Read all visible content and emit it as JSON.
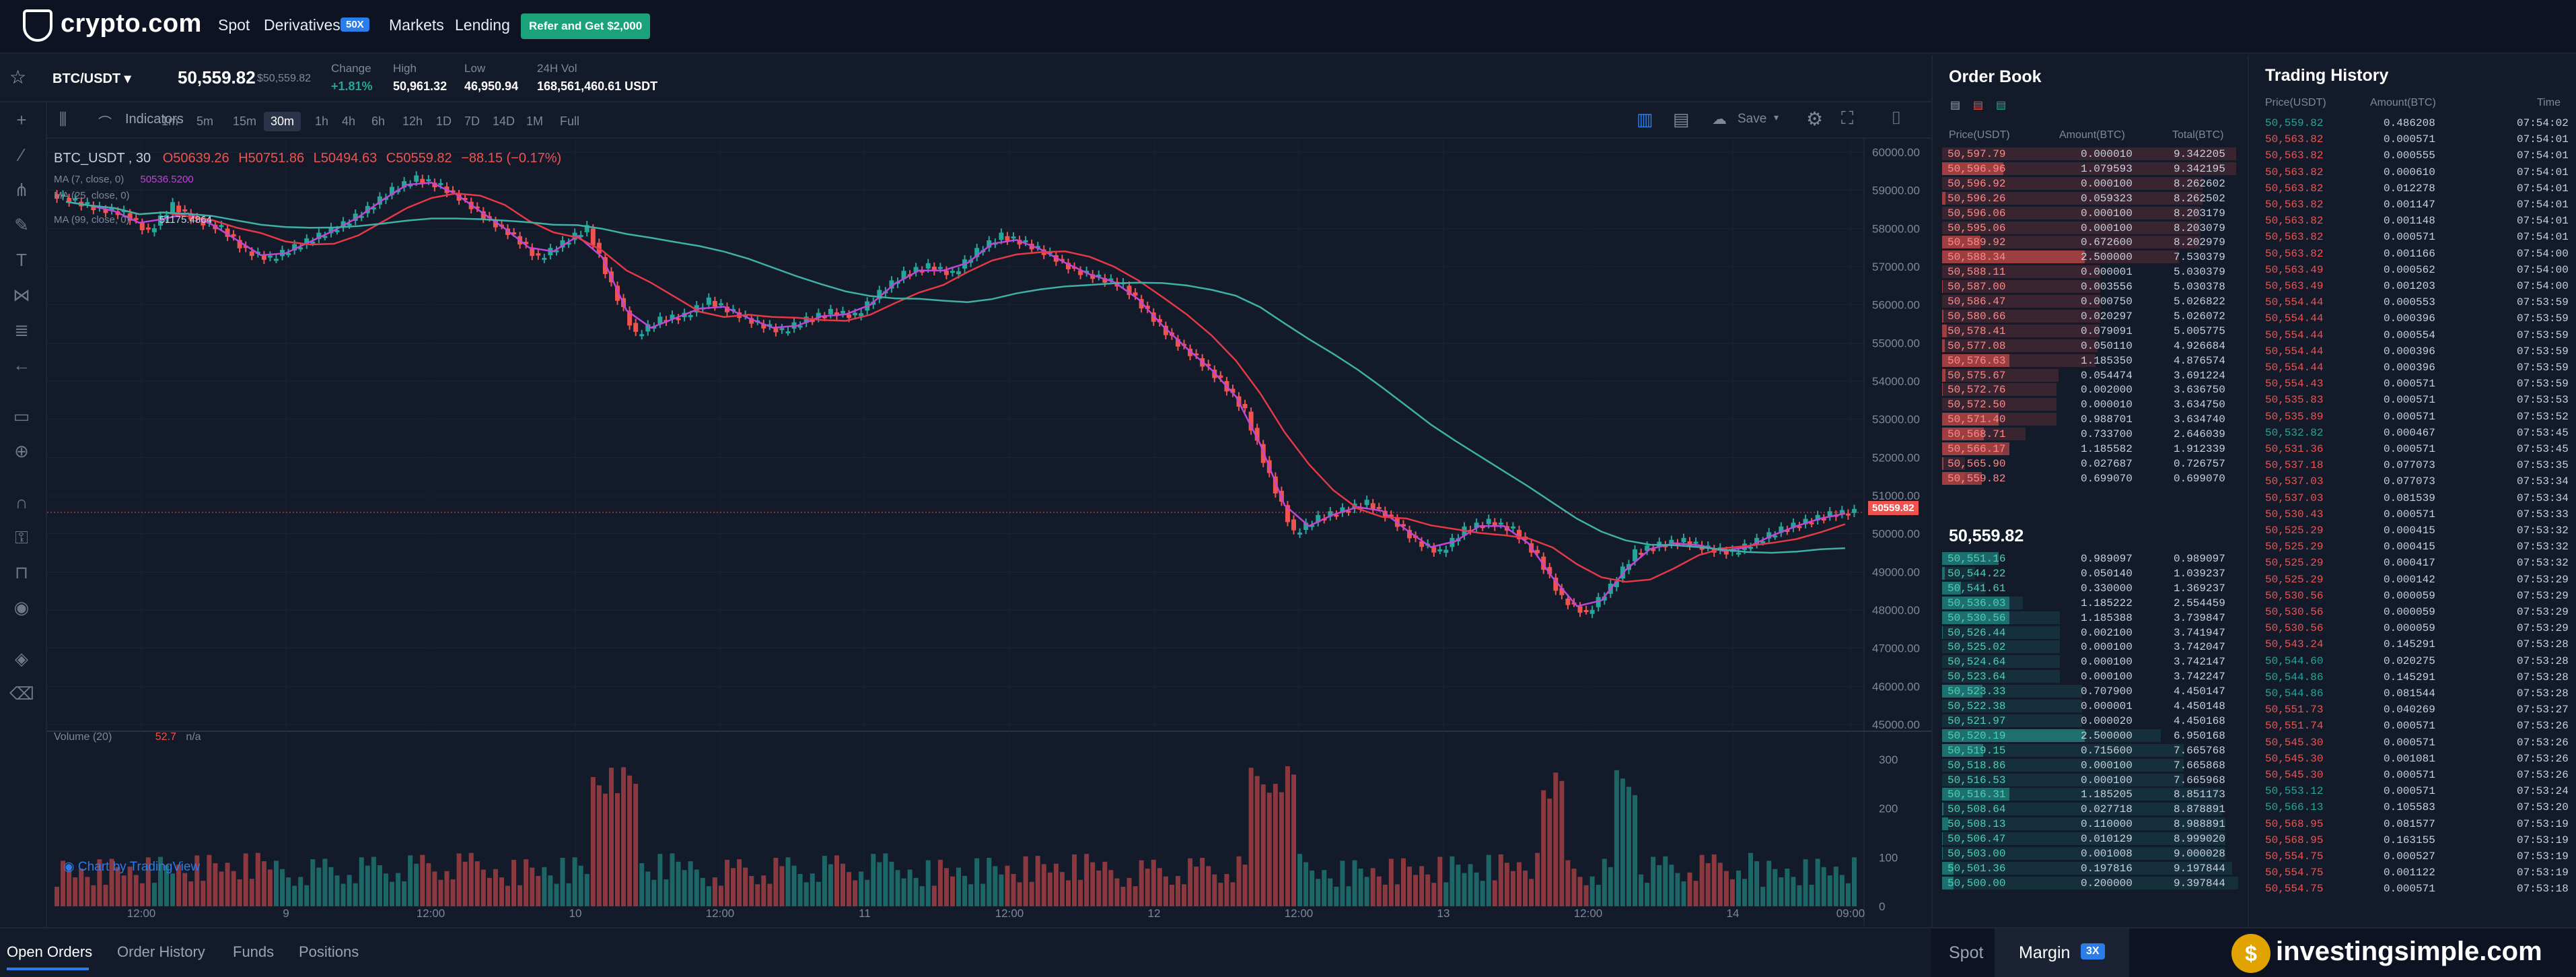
{
  "nav": {
    "logo": "crypto.com",
    "links": [
      "Spot",
      "Derivatives",
      "Markets",
      "Lending"
    ],
    "derivatives_badge": "50X",
    "refer_button": "Refer and Get $2,000"
  },
  "ticker": {
    "pair": "BTC/USDT",
    "price": "50,559.82",
    "price_usd": "$50,559.82",
    "stats": [
      {
        "label": "Change",
        "value": "+1.81%"
      },
      {
        "label": "High",
        "value": "50,961.32"
      },
      {
        "label": "Low",
        "value": "46,950.94"
      },
      {
        "label": "24H Vol",
        "value": "168,561,460.61 USDT"
      }
    ]
  },
  "toolbar": {
    "indicators_label": "Indicators",
    "timeframes": [
      "1m",
      "5m",
      "15m",
      "30m",
      "1h",
      "4h",
      "6h",
      "12h",
      "1D",
      "7D",
      "14D",
      "1M",
      "Full"
    ],
    "active_timeframe": "30m",
    "save_label": "Save"
  },
  "chart": {
    "symbol_label": "BTC_USDT , 30",
    "open": "O50639.26",
    "high": "H50751.86",
    "low": "L50494.63",
    "close": "C50559.82",
    "change": "−88.15 (−0.17%)",
    "ma7_label": "MA (7, close, 0)",
    "ma7_value": "50536.5200",
    "ma25_label": "MA (25, close, 0)",
    "ma25_value": "51175.4864",
    "ma99_label": "MA (99, close, 0)",
    "price_tag": "50559.82",
    "volume_label": "Volume (20)",
    "volume_value": "52.7",
    "volume_na": "n/a",
    "watermark": "Chart by TradingView",
    "price_ticks": [
      "60000.00",
      "59000.00",
      "58000.00",
      "57000.00",
      "56000.00",
      "55000.00",
      "54000.00",
      "53000.00",
      "52000.00",
      "51000.00",
      "50000.00",
      "49000.00",
      "48000.00",
      "47000.00",
      "46000.00",
      "45000.00"
    ],
    "volume_ticks": [
      "300",
      "200",
      "100",
      "0"
    ],
    "time_ticks": [
      "12:00",
      "9",
      "12:00",
      "10",
      "12:00",
      "11",
      "12:00",
      "12",
      "12:00",
      "13",
      "12:00",
      "14",
      "09:00"
    ]
  },
  "chart_data": {
    "type": "line",
    "title": "",
    "xlabel": "",
    "ylabel": "",
    "ylim": [
      45000,
      60000
    ],
    "series": [
      {
        "name": "",
        "values": [
          58700,
          58500,
          58400,
          57900,
          58600,
          58200,
          58000,
          57400,
          57200,
          57500,
          57800,
          58100,
          58500,
          59000,
          59300,
          59100,
          58700,
          58200,
          57800,
          57200,
          57600,
          58000,
          56500,
          55200,
          55600,
          55700,
          56100,
          55800,
          55500,
          55300,
          55600,
          55800,
          55700,
          56300,
          56800,
          57000,
          56800,
          57400,
          57800,
          57600,
          57300,
          56900,
          56700,
          56500,
          55800,
          55100,
          54600,
          54000,
          53200,
          51500,
          50000,
          50400,
          50600,
          50800,
          50400,
          49800,
          49500,
          50100,
          50300,
          50100,
          49400,
          48300,
          47900,
          48600,
          49500,
          49700,
          49800,
          49600,
          49500,
          49800,
          50100,
          50300,
          50500,
          50560
        ]
      }
    ]
  },
  "orderbook": {
    "title": "Order Book",
    "headers": [
      "Price(USDT)",
      "Amount(BTC)",
      "Total(BTC)"
    ],
    "asks": [
      [
        "50,597.79",
        "0.000010",
        "9.342205"
      ],
      [
        "50,596.96",
        "1.079593",
        "9.342195"
      ],
      [
        "50,596.92",
        "0.000100",
        "8.262602"
      ],
      [
        "50,596.26",
        "0.059323",
        "8.262502"
      ],
      [
        "50,596.06",
        "0.000100",
        "8.203179"
      ],
      [
        "50,595.06",
        "0.000100",
        "8.203079"
      ],
      [
        "50,589.92",
        "0.672600",
        "8.202979"
      ],
      [
        "50,588.34",
        "2.500000",
        "7.530379"
      ],
      [
        "50,588.11",
        "0.000001",
        "5.030379"
      ],
      [
        "50,587.00",
        "0.003556",
        "5.030378"
      ],
      [
        "50,586.47",
        "0.000750",
        "5.026822"
      ],
      [
        "50,580.66",
        "0.020297",
        "5.026072"
      ],
      [
        "50,578.41",
        "0.079091",
        "5.005775"
      ],
      [
        "50,577.08",
        "0.050110",
        "4.926684"
      ],
      [
        "50,576.63",
        "1.185350",
        "4.876574"
      ],
      [
        "50,575.67",
        "0.054474",
        "3.691224"
      ],
      [
        "50,572.76",
        "0.002000",
        "3.636750"
      ],
      [
        "50,572.50",
        "0.000010",
        "3.634750"
      ],
      [
        "50,571.40",
        "0.988701",
        "3.634740"
      ],
      [
        "50,568.71",
        "0.733700",
        "2.646039"
      ],
      [
        "50,566.17",
        "1.185582",
        "1.912339"
      ],
      [
        "50,565.90",
        "0.027687",
        "0.726757"
      ],
      [
        "50,559.82",
        "0.699070",
        "0.699070"
      ]
    ],
    "mid_price": "50,559.82",
    "bids": [
      [
        "50,551.16",
        "0.989097",
        "0.989097"
      ],
      [
        "50,544.22",
        "0.050140",
        "1.039237"
      ],
      [
        "50,541.61",
        "0.330000",
        "1.369237"
      ],
      [
        "50,536.03",
        "1.185222",
        "2.554459"
      ],
      [
        "50,530.56",
        "1.185388",
        "3.739847"
      ],
      [
        "50,526.44",
        "0.002100",
        "3.741947"
      ],
      [
        "50,525.02",
        "0.000100",
        "3.742047"
      ],
      [
        "50,524.64",
        "0.000100",
        "3.742147"
      ],
      [
        "50,523.64",
        "0.000100",
        "3.742247"
      ],
      [
        "50,523.33",
        "0.707900",
        "4.450147"
      ],
      [
        "50,522.38",
        "0.000001",
        "4.450148"
      ],
      [
        "50,521.97",
        "0.000020",
        "4.450168"
      ],
      [
        "50,520.19",
        "2.500000",
        "6.950168"
      ],
      [
        "50,519.15",
        "0.715600",
        "7.665768"
      ],
      [
        "50,518.86",
        "0.000100",
        "7.665868"
      ],
      [
        "50,516.53",
        "0.000100",
        "7.665968"
      ],
      [
        "50,516.31",
        "1.185205",
        "8.851173"
      ],
      [
        "50,508.64",
        "0.027718",
        "8.878891"
      ],
      [
        "50,508.13",
        "0.110000",
        "8.988891"
      ],
      [
        "50,506.47",
        "0.010129",
        "8.999020"
      ],
      [
        "50,503.00",
        "0.001008",
        "9.000028"
      ],
      [
        "50,501.36",
        "0.197816",
        "9.197844"
      ],
      [
        "50,500.00",
        "0.200000",
        "9.397844"
      ]
    ]
  },
  "trades": {
    "title": "Trading History",
    "headers": [
      "Price(USDT)",
      "Amount(BTC)",
      "Time"
    ],
    "rows": [
      [
        "50,559.82",
        "0.486208",
        "07:54:02",
        "g"
      ],
      [
        "50,563.82",
        "0.000571",
        "07:54:01",
        "r"
      ],
      [
        "50,563.82",
        "0.000555",
        "07:54:01",
        "r"
      ],
      [
        "50,563.82",
        "0.000610",
        "07:54:01",
        "r"
      ],
      [
        "50,563.82",
        "0.012278",
        "07:54:01",
        "r"
      ],
      [
        "50,563.82",
        "0.001147",
        "07:54:01",
        "r"
      ],
      [
        "50,563.82",
        "0.001148",
        "07:54:01",
        "r"
      ],
      [
        "50,563.82",
        "0.000571",
        "07:54:01",
        "r"
      ],
      [
        "50,563.82",
        "0.001166",
        "07:54:00",
        "r"
      ],
      [
        "50,563.49",
        "0.000562",
        "07:54:00",
        "r"
      ],
      [
        "50,563.49",
        "0.001203",
        "07:54:00",
        "r"
      ],
      [
        "50,554.44",
        "0.000553",
        "07:53:59",
        "r"
      ],
      [
        "50,554.44",
        "0.000396",
        "07:53:59",
        "r"
      ],
      [
        "50,554.44",
        "0.000554",
        "07:53:59",
        "r"
      ],
      [
        "50,554.44",
        "0.000396",
        "07:53:59",
        "r"
      ],
      [
        "50,554.44",
        "0.000396",
        "07:53:59",
        "r"
      ],
      [
        "50,554.43",
        "0.000571",
        "07:53:59",
        "r"
      ],
      [
        "50,535.83",
        "0.000571",
        "07:53:53",
        "r"
      ],
      [
        "50,535.89",
        "0.000571",
        "07:53:52",
        "r"
      ],
      [
        "50,532.82",
        "0.000467",
        "07:53:45",
        "g"
      ],
      [
        "50,531.36",
        "0.000571",
        "07:53:45",
        "r"
      ],
      [
        "50,537.18",
        "0.077073",
        "07:53:35",
        "r"
      ],
      [
        "50,537.03",
        "0.077073",
        "07:53:34",
        "r"
      ],
      [
        "50,537.03",
        "0.081539",
        "07:53:34",
        "r"
      ],
      [
        "50,530.43",
        "0.000571",
        "07:53:33",
        "r"
      ],
      [
        "50,525.29",
        "0.000415",
        "07:53:32",
        "r"
      ],
      [
        "50,525.29",
        "0.000415",
        "07:53:32",
        "r"
      ],
      [
        "50,525.29",
        "0.000417",
        "07:53:32",
        "r"
      ],
      [
        "50,525.29",
        "0.000142",
        "07:53:29",
        "r"
      ],
      [
        "50,530.56",
        "0.000059",
        "07:53:29",
        "r"
      ],
      [
        "50,530.56",
        "0.000059",
        "07:53:29",
        "r"
      ],
      [
        "50,530.56",
        "0.000059",
        "07:53:29",
        "r"
      ],
      [
        "50,543.24",
        "0.145291",
        "07:53:28",
        "r"
      ],
      [
        "50,544.60",
        "0.020275",
        "07:53:28",
        "g"
      ],
      [
        "50,544.86",
        "0.145291",
        "07:53:28",
        "g"
      ],
      [
        "50,544.86",
        "0.081544",
        "07:53:28",
        "g"
      ],
      [
        "50,551.73",
        "0.040269",
        "07:53:27",
        "r"
      ],
      [
        "50,551.74",
        "0.000571",
        "07:53:26",
        "r"
      ],
      [
        "50,545.30",
        "0.000571",
        "07:53:26",
        "r"
      ],
      [
        "50,545.30",
        "0.001081",
        "07:53:26",
        "r"
      ],
      [
        "50,545.30",
        "0.000571",
        "07:53:26",
        "r"
      ],
      [
        "50,553.12",
        "0.000571",
        "07:53:24",
        "g"
      ],
      [
        "50,566.13",
        "0.105583",
        "07:53:20",
        "g"
      ],
      [
        "50,568.95",
        "0.081577",
        "07:53:19",
        "r"
      ],
      [
        "50,568.95",
        "0.163155",
        "07:53:19",
        "r"
      ],
      [
        "50,554.75",
        "0.000527",
        "07:53:19",
        "r"
      ],
      [
        "50,554.75",
        "0.001122",
        "07:53:19",
        "r"
      ],
      [
        "50,554.75",
        "0.000571",
        "07:53:18",
        "r"
      ]
    ]
  },
  "bottom": {
    "tabs": [
      "Open Orders",
      "Order History",
      "Funds",
      "Positions"
    ],
    "spot_label": "Spot",
    "margin_label": "Margin",
    "margin_badge": "3X",
    "brand": "investingsimple.com"
  },
  "colors": {
    "green": "#26a69a",
    "red": "#ef5350",
    "accent": "#1ba27a",
    "bg": "#131a2a"
  }
}
